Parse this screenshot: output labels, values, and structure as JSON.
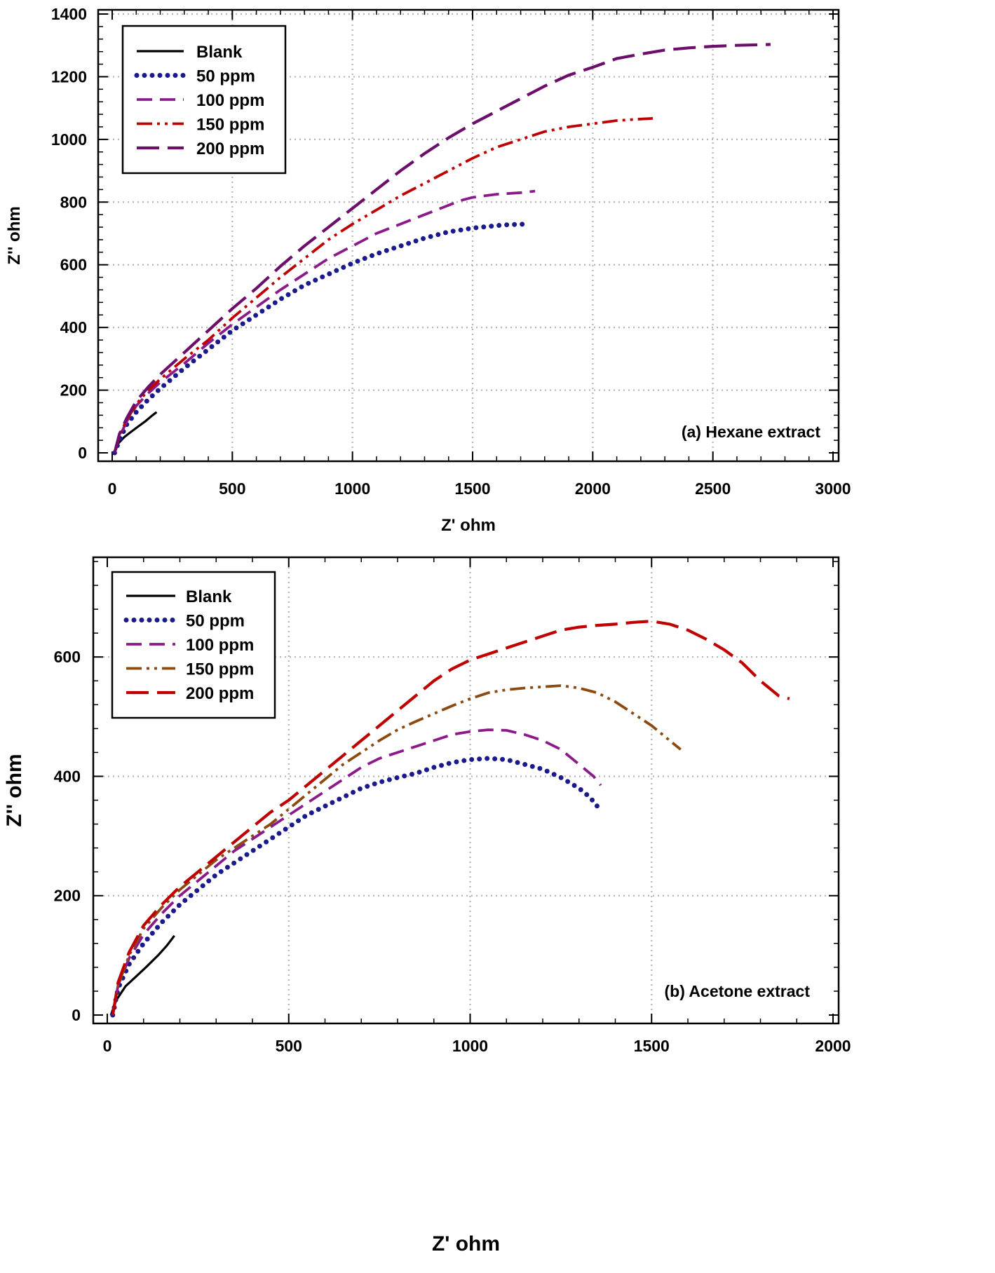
{
  "chart_data": [
    {
      "type": "line",
      "title": "",
      "annotation": "(a) Hexane extract",
      "xlabel": "Z' ohm",
      "ylabel": "Z'' ohm",
      "xlim": [
        0,
        3000
      ],
      "ylim": [
        0,
        1400
      ],
      "xticks": [
        0,
        500,
        1000,
        1500,
        2000,
        2500,
        3000
      ],
      "yticks": [
        0,
        200,
        400,
        600,
        800,
        1000,
        1200,
        1400
      ],
      "xtick_labels": [
        "0",
        "500",
        "1000",
        "1500",
        "2000",
        "2500",
        "3000"
      ],
      "ytick_labels": [
        "0",
        "200",
        "400",
        "600",
        "800",
        "1000",
        "1200",
        "1400"
      ],
      "grid": true,
      "legend_position": "top-left",
      "series": [
        {
          "name": "Blank",
          "style": "solid",
          "color": "#000000",
          "x": [
            10,
            25,
            50,
            80,
            110,
            140,
            165,
            185
          ],
          "y": [
            0,
            30,
            50,
            68,
            85,
            102,
            118,
            130
          ]
        },
        {
          "name": "50 ppm",
          "style": "dotted",
          "color": "#1a1a8c",
          "x": [
            10,
            30,
            60,
            100,
            150,
            200,
            300,
            400,
            500,
            600,
            700,
            800,
            900,
            1000,
            1100,
            1200,
            1300,
            1400,
            1500,
            1600,
            1650,
            1700,
            1720
          ],
          "y": [
            0,
            40,
            90,
            130,
            170,
            205,
            270,
            330,
            390,
            440,
            490,
            535,
            570,
            605,
            635,
            660,
            685,
            705,
            717,
            725,
            728,
            729,
            730
          ]
        },
        {
          "name": "100 ppm",
          "style": "dashed",
          "color": "#8b1a8b",
          "x": [
            10,
            30,
            60,
            100,
            150,
            200,
            300,
            400,
            500,
            600,
            700,
            800,
            900,
            1000,
            1100,
            1200,
            1300,
            1400,
            1450,
            1500,
            1600,
            1700,
            1760
          ],
          "y": [
            0,
            50,
            100,
            150,
            190,
            225,
            285,
            350,
            410,
            465,
            520,
            570,
            620,
            660,
            700,
            730,
            760,
            790,
            805,
            815,
            825,
            830,
            835
          ]
        },
        {
          "name": "150 ppm",
          "style": "dash-dot-dot",
          "color": "#c00000",
          "x": [
            10,
            30,
            60,
            100,
            150,
            200,
            300,
            400,
            500,
            600,
            700,
            800,
            900,
            1000,
            1100,
            1200,
            1300,
            1400,
            1500,
            1600,
            1700,
            1800,
            1900,
            2000,
            2100,
            2200,
            2250
          ],
          "y": [
            0,
            55,
            105,
            155,
            200,
            235,
            300,
            360,
            430,
            495,
            560,
            620,
            680,
            730,
            775,
            820,
            860,
            900,
            940,
            975,
            1000,
            1025,
            1040,
            1050,
            1060,
            1065,
            1067
          ]
        },
        {
          "name": "200 ppm",
          "style": "long-dash",
          "color": "#6b0f6b",
          "x": [
            10,
            30,
            60,
            100,
            150,
            200,
            300,
            400,
            500,
            600,
            700,
            800,
            900,
            1000,
            1100,
            1200,
            1300,
            1400,
            1500,
            1600,
            1700,
            1800,
            1900,
            2000,
            2100,
            2200,
            2300,
            2400,
            2500,
            2600,
            2700,
            2740
          ],
          "y": [
            0,
            60,
            110,
            165,
            210,
            250,
            320,
            390,
            460,
            525,
            595,
            660,
            720,
            780,
            840,
            900,
            955,
            1005,
            1050,
            1090,
            1130,
            1170,
            1205,
            1230,
            1258,
            1272,
            1285,
            1292,
            1297,
            1300,
            1302,
            1303
          ]
        }
      ]
    },
    {
      "type": "line",
      "title": "",
      "annotation": "(b) Acetone extract",
      "xlabel": "Z' ohm",
      "ylabel": "Z'' ohm",
      "xlim": [
        0,
        2000
      ],
      "ylim": [
        0,
        750
      ],
      "xticks": [
        0,
        500,
        1000,
        1500,
        2000
      ],
      "yticks": [
        0,
        200,
        400,
        600
      ],
      "xtick_labels": [
        "0",
        "500",
        "1000",
        "1500",
        "2000"
      ],
      "ytick_labels": [
        "0",
        "200",
        "400",
        "600"
      ],
      "grid": true,
      "legend_position": "top-left",
      "series": [
        {
          "name": "Blank",
          "style": "solid",
          "color": "#000000",
          "x": [
            10,
            25,
            50,
            80,
            110,
            140,
            165,
            185
          ],
          "y": [
            0,
            25,
            48,
            65,
            82,
            100,
            117,
            133
          ]
        },
        {
          "name": "50 ppm",
          "style": "dotted",
          "color": "#1a1a8c",
          "x": [
            15,
            30,
            60,
            100,
            150,
            200,
            250,
            300,
            350,
            400,
            450,
            500,
            550,
            600,
            650,
            700,
            750,
            800,
            850,
            900,
            950,
            1000,
            1050,
            1100,
            1150,
            1200,
            1250,
            1300,
            1330,
            1350
          ],
          "y": [
            0,
            45,
            85,
            120,
            155,
            185,
            210,
            235,
            255,
            275,
            295,
            315,
            335,
            350,
            365,
            380,
            390,
            398,
            405,
            415,
            423,
            428,
            430,
            428,
            420,
            412,
            398,
            380,
            365,
            350
          ]
        },
        {
          "name": "100 ppm",
          "style": "dashed",
          "color": "#8b1a8b",
          "x": [
            15,
            30,
            60,
            100,
            150,
            200,
            250,
            300,
            350,
            400,
            450,
            500,
            550,
            600,
            650,
            700,
            750,
            800,
            850,
            900,
            950,
            1000,
            1050,
            1100,
            1150,
            1200,
            1250,
            1300,
            1340,
            1360
          ],
          "y": [
            0,
            50,
            95,
            135,
            170,
            200,
            225,
            250,
            275,
            295,
            315,
            335,
            355,
            375,
            395,
            415,
            430,
            440,
            450,
            460,
            470,
            475,
            478,
            477,
            470,
            460,
            445,
            420,
            400,
            385
          ]
        },
        {
          "name": "150 ppm",
          "style": "dash-dot-dot",
          "color": "#8b4a0f",
          "x": [
            15,
            30,
            60,
            100,
            150,
            200,
            250,
            300,
            350,
            400,
            450,
            500,
            550,
            600,
            650,
            700,
            750,
            800,
            850,
            900,
            950,
            1000,
            1050,
            1100,
            1150,
            1200,
            1250,
            1300,
            1350,
            1400,
            1450,
            1500,
            1550,
            1580
          ],
          "y": [
            0,
            50,
            100,
            145,
            180,
            210,
            235,
            260,
            280,
            300,
            320,
            345,
            370,
            395,
            420,
            440,
            460,
            478,
            492,
            505,
            518,
            530,
            540,
            545,
            548,
            550,
            552,
            548,
            540,
            525,
            505,
            485,
            460,
            445
          ]
        },
        {
          "name": "200 ppm",
          "style": "long-dash",
          "color": "#c00000",
          "x": [
            15,
            30,
            60,
            100,
            150,
            200,
            250,
            300,
            350,
            400,
            450,
            500,
            550,
            600,
            650,
            700,
            750,
            800,
            850,
            900,
            950,
            1000,
            1050,
            1100,
            1150,
            1200,
            1250,
            1300,
            1350,
            1400,
            1450,
            1500,
            1550,
            1600,
            1650,
            1700,
            1750,
            1800,
            1850,
            1880
          ],
          "y": [
            0,
            55,
            105,
            150,
            185,
            215,
            240,
            265,
            290,
            315,
            340,
            360,
            385,
            410,
            435,
            460,
            485,
            510,
            535,
            560,
            580,
            595,
            605,
            615,
            625,
            635,
            645,
            650,
            653,
            655,
            658,
            660,
            655,
            645,
            630,
            612,
            590,
            560,
            535,
            530
          ]
        }
      ]
    }
  ]
}
